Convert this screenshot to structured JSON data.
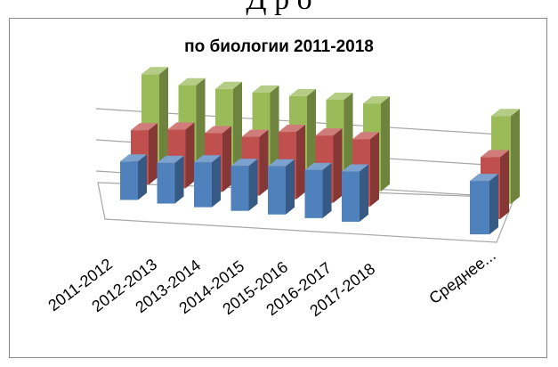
{
  "top_text": "Д      р       о",
  "chart_data": {
    "type": "bar",
    "title": "по биологии  2011-2018",
    "categories": [
      "2011-2012",
      "2012-2013",
      "2013-2014",
      "2014-2015",
      "2015-2016",
      "2016-2017",
      "2017-2018",
      "Среднее..."
    ],
    "series": [
      {
        "color": "#4f81bd",
        "values": [
          36,
          38,
          42,
          42,
          45,
          45,
          47,
          50
        ]
      },
      {
        "color": "#c0504d",
        "values": [
          51,
          55,
          55,
          55,
          63,
          63,
          63,
          58
        ]
      },
      {
        "color": "#9bbb59",
        "values": [
          90,
          83,
          83,
          83,
          83,
          83,
          83,
          83
        ]
      }
    ],
    "ylim": [
      0,
      100
    ],
    "grid": true,
    "legend": "none"
  }
}
